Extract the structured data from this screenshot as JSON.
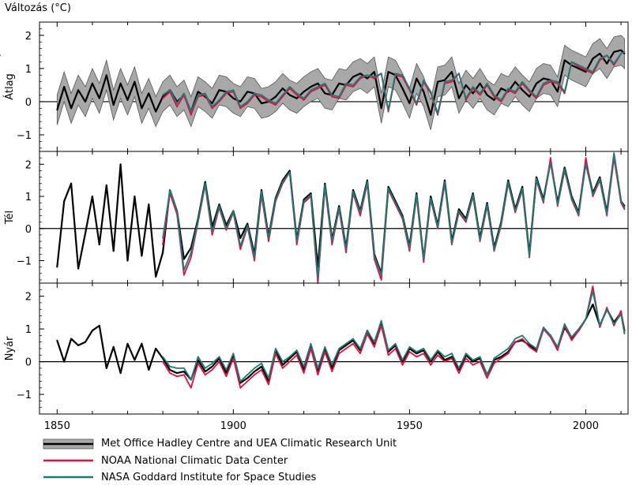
{
  "chart_data": {
    "type": "line",
    "title": "",
    "ylabel": "Változás (°C)",
    "xlim": [
      1845,
      2012
    ],
    "xticks": [
      1850,
      1900,
      1950,
      2000
    ],
    "colors": {
      "hadley": "#000000",
      "hadley_band": "#a8a8a8",
      "noaa": "#e0103e",
      "nasa": "#1d7a79"
    },
    "legend": [
      {
        "key": "hadley",
        "label": "Met Office Hadley Centre and UEA Climatic Research Unit"
      },
      {
        "key": "noaa",
        "label": "NOAA National Climatic Data Center"
      },
      {
        "key": "nasa",
        "label": "NASA Goddard Institute for Space Studies"
      }
    ],
    "panels": [
      {
        "name": "Átlag",
        "ylim": [
          -1.5,
          2.4
        ],
        "yticks": [
          -1,
          0,
          1,
          2
        ],
        "x": [
          1850,
          1852,
          1854,
          1856,
          1858,
          1860,
          1862,
          1864,
          1866,
          1868,
          1870,
          1872,
          1874,
          1876,
          1878,
          1880,
          1882,
          1884,
          1886,
          1888,
          1890,
          1892,
          1894,
          1896,
          1898,
          1900,
          1902,
          1904,
          1906,
          1908,
          1910,
          1912,
          1914,
          1916,
          1918,
          1920,
          1922,
          1924,
          1926,
          1928,
          1930,
          1932,
          1934,
          1936,
          1938,
          1940,
          1942,
          1944,
          1946,
          1948,
          1950,
          1952,
          1954,
          1956,
          1958,
          1960,
          1962,
          1964,
          1966,
          1968,
          1970,
          1972,
          1974,
          1976,
          1978,
          1980,
          1982,
          1984,
          1986,
          1988,
          1990,
          1992,
          1994,
          1996,
          1998,
          2000,
          2002,
          2004,
          2006,
          2008,
          2010,
          2011
        ],
        "series": [
          {
            "key": "hadley",
            "uncertainty": 0.45,
            "start": 1850,
            "values": [
              -0.25,
              0.45,
              -0.2,
              0.35,
              0.0,
              0.55,
              0.1,
              0.8,
              -0.1,
              0.55,
              0.05,
              0.6,
              -0.2,
              0.25,
              -0.3,
              0.15,
              0.35,
              0.0,
              0.2,
              -0.3,
              0.3,
              0.15,
              -0.05,
              0.35,
              0.3,
              0.1,
              0.0,
              0.3,
              0.25,
              -0.05,
              0.0,
              0.15,
              0.4,
              0.2,
              0.1,
              0.3,
              0.45,
              0.55,
              0.25,
              0.2,
              0.55,
              0.5,
              0.75,
              0.85,
              0.7,
              0.9,
              -0.2,
              0.9,
              0.8,
              0.4,
              -0.05,
              0.7,
              0.3,
              -0.4,
              0.6,
              0.65,
              0.9,
              0.1,
              0.5,
              0.25,
              0.55,
              0.2,
              0.05,
              0.4,
              0.3,
              0.6,
              0.35,
              0.15,
              0.55,
              0.7,
              0.65,
              0.3,
              1.25,
              1.1,
              1.0,
              0.9,
              1.3,
              1.45,
              1.15,
              1.5,
              1.55,
              1.45
            ]
          },
          {
            "key": "noaa",
            "start": 1880,
            "values": [
              0.1,
              0.3,
              -0.15,
              0.2,
              -0.4,
              0.15,
              0.2,
              -0.2,
              0.0,
              0.25,
              0.3,
              -0.2,
              -0.05,
              0.2,
              0.15,
              0.0,
              -0.1,
              0.15,
              0.4,
              0.2,
              0.05,
              0.3,
              0.4,
              0.5,
              0.15,
              0.1,
              0.5,
              0.45,
              0.7,
              0.8,
              0.7,
              0.85,
              -0.3,
              0.8,
              0.75,
              0.35,
              -0.1,
              0.6,
              0.25,
              -0.4,
              0.55,
              0.6,
              0.85,
              0.05,
              0.4,
              0.2,
              0.5,
              0.15,
              0.0,
              0.35,
              0.25,
              0.55,
              0.3,
              0.1,
              0.5,
              0.6,
              0.55,
              0.25,
              1.2,
              1.05,
              0.95,
              0.85,
              1.25,
              1.4,
              1.1,
              1.45,
              1.5,
              1.4
            ]
          },
          {
            "key": "nasa",
            "start": 1880,
            "values": [
              0.2,
              0.35,
              -0.05,
              0.25,
              -0.3,
              0.2,
              0.25,
              -0.15,
              0.05,
              0.3,
              0.35,
              -0.15,
              0.0,
              0.25,
              0.2,
              0.05,
              -0.05,
              0.2,
              0.45,
              0.25,
              0.1,
              0.35,
              0.45,
              0.55,
              0.2,
              0.15,
              0.55,
              0.5,
              0.75,
              0.8,
              0.75,
              0.85,
              -0.25,
              0.85,
              0.8,
              0.4,
              -0.05,
              0.65,
              0.3,
              -0.35,
              0.6,
              0.65,
              0.85,
              0.1,
              0.45,
              0.25,
              0.55,
              0.2,
              0.05,
              0.4,
              0.3,
              0.6,
              0.35,
              0.15,
              0.55,
              0.65,
              0.6,
              0.3,
              1.2,
              1.1,
              1.0,
              0.9,
              1.3,
              1.4,
              1.15,
              1.45,
              1.5,
              1.4
            ]
          }
        ]
      },
      {
        "name": "Tél",
        "ylim": [
          -1.7,
          2.4
        ],
        "yticks": [
          -1,
          0,
          1,
          2
        ],
        "x": [
          1850,
          1852,
          1854,
          1856,
          1858,
          1860,
          1862,
          1864,
          1866,
          1868,
          1870,
          1872,
          1874,
          1876,
          1878,
          1880,
          1882,
          1884,
          1886,
          1888,
          1890,
          1892,
          1894,
          1896,
          1898,
          1900,
          1902,
          1904,
          1906,
          1908,
          1910,
          1912,
          1914,
          1916,
          1918,
          1920,
          1922,
          1924,
          1926,
          1928,
          1930,
          1932,
          1934,
          1936,
          1938,
          1940,
          1942,
          1944,
          1946,
          1948,
          1950,
          1952,
          1954,
          1956,
          1958,
          1960,
          1962,
          1964,
          1966,
          1968,
          1970,
          1972,
          1974,
          1976,
          1978,
          1980,
          1982,
          1984,
          1986,
          1988,
          1990,
          1992,
          1994,
          1996,
          1998,
          2000,
          2002,
          2004,
          2006,
          2008,
          2010,
          2011
        ],
        "series": [
          {
            "key": "hadley",
            "start": 1850,
            "values": [
              -1.2,
              0.85,
              1.4,
              -1.25,
              -0.15,
              1.0,
              -0.5,
              1.35,
              -0.7,
              2.0,
              -1.0,
              1.0,
              -0.85,
              0.75,
              -1.5,
              -0.75,
              1.2,
              0.55,
              -0.95,
              -0.6,
              0.3,
              1.45,
              0.05,
              0.75,
              0.1,
              0.55,
              -0.3,
              0.15,
              -0.8,
              1.2,
              -0.25,
              0.95,
              1.5,
              1.8,
              -0.35,
              0.9,
              1.1,
              -1.2,
              1.4,
              -0.35,
              0.7,
              -0.6,
              1.2,
              0.55,
              1.5,
              -0.8,
              -1.4,
              1.3,
              0.85,
              0.4,
              -0.55,
              1.1,
              -0.95,
              1.0,
              0.1,
              1.5,
              -0.4,
              0.6,
              0.3,
              1.1,
              -0.3,
              0.8,
              -0.6,
              0.2,
              1.5,
              0.6,
              1.3,
              -0.8,
              1.6,
              0.9,
              2.1,
              0.8,
              1.9,
              1.0,
              0.5,
              2.1,
              1.1,
              1.6,
              0.5,
              2.3,
              0.85,
              0.7
            ]
          },
          {
            "key": "noaa",
            "start": 1880,
            "values": [
              -0.5,
              1.1,
              0.45,
              -1.45,
              -0.9,
              0.2,
              1.35,
              -0.2,
              0.65,
              -0.05,
              0.5,
              -0.65,
              0.05,
              -1.0,
              1.05,
              -0.4,
              0.85,
              1.4,
              1.75,
              -0.5,
              0.8,
              1.0,
              -1.7,
              1.3,
              -0.5,
              0.6,
              -0.75,
              1.1,
              0.4,
              1.4,
              -0.95,
              -1.6,
              1.2,
              0.75,
              0.3,
              -0.7,
              1.0,
              -1.05,
              0.9,
              0.0,
              1.4,
              -0.5,
              0.5,
              0.2,
              1.0,
              -0.4,
              0.7,
              -0.7,
              0.1,
              1.4,
              0.5,
              1.2,
              -0.9,
              1.5,
              0.8,
              2.2,
              0.7,
              1.8,
              0.9,
              0.4,
              2.2,
              1.0,
              1.5,
              0.4,
              2.2,
              0.8,
              0.6
            ]
          },
          {
            "key": "nasa",
            "start": 1880,
            "values": [
              -0.3,
              1.2,
              0.55,
              -1.3,
              -0.75,
              0.25,
              1.4,
              -0.1,
              0.7,
              0.0,
              0.55,
              -0.55,
              0.1,
              -0.9,
              1.15,
              -0.3,
              0.9,
              1.45,
              1.75,
              -0.4,
              0.85,
              1.05,
              -1.55,
              1.35,
              -0.4,
              0.65,
              -0.65,
              1.15,
              0.5,
              1.45,
              -0.85,
              -1.45,
              1.25,
              0.8,
              0.35,
              -0.6,
              1.05,
              -0.95,
              0.95,
              0.05,
              1.45,
              -0.45,
              0.55,
              0.25,
              1.05,
              -0.35,
              0.75,
              -0.65,
              0.15,
              1.45,
              0.55,
              1.25,
              -0.85,
              1.55,
              0.85,
              2.05,
              0.75,
              1.85,
              0.95,
              0.45,
              2.0,
              1.05,
              1.55,
              0.45,
              2.35,
              0.85,
              0.65
            ]
          }
        ]
      },
      {
        "name": "Nyár",
        "ylim": [
          -1.6,
          2.4
        ],
        "yticks": [
          -1,
          0,
          1,
          2
        ],
        "x": [
          1850,
          1852,
          1854,
          1856,
          1858,
          1860,
          1862,
          1864,
          1866,
          1868,
          1870,
          1872,
          1874,
          1876,
          1878,
          1880,
          1882,
          1884,
          1886,
          1888,
          1890,
          1892,
          1894,
          1896,
          1898,
          1900,
          1902,
          1904,
          1906,
          1908,
          1910,
          1912,
          1914,
          1916,
          1918,
          1920,
          1922,
          1924,
          1926,
          1928,
          1930,
          1932,
          1934,
          1936,
          1938,
          1940,
          1942,
          1944,
          1946,
          1948,
          1950,
          1952,
          1954,
          1956,
          1958,
          1960,
          1962,
          1964,
          1966,
          1968,
          1970,
          1972,
          1974,
          1976,
          1978,
          1980,
          1982,
          1984,
          1986,
          1988,
          1990,
          1992,
          1994,
          1996,
          1998,
          2000,
          2002,
          2004,
          2006,
          2008,
          2010,
          2011
        ],
        "series": [
          {
            "key": "hadley",
            "start": 1850,
            "values": [
              0.65,
              0.0,
              0.7,
              0.5,
              0.6,
              0.95,
              1.1,
              -0.2,
              0.45,
              -0.35,
              0.55,
              0.05,
              0.55,
              -0.25,
              0.4,
              0.1,
              -0.25,
              -0.35,
              -0.3,
              -0.55,
              0.05,
              -0.3,
              -0.15,
              0.1,
              -0.35,
              0.2,
              -0.65,
              -0.5,
              -0.3,
              -0.15,
              -0.6,
              0.35,
              -0.1,
              0.1,
              0.3,
              -0.25,
              0.5,
              -0.3,
              0.4,
              -0.2,
              0.35,
              0.5,
              0.65,
              0.35,
              0.95,
              0.55,
              1.2,
              0.3,
              0.5,
              0.0,
              0.4,
              0.25,
              0.35,
              0.0,
              0.3,
              0.05,
              0.15,
              -0.25,
              0.2,
              0.0,
              0.1,
              -0.4,
              0.05,
              0.15,
              0.3,
              0.6,
              0.65,
              0.5,
              0.35,
              1.0,
              0.8,
              0.4,
              1.05,
              0.7,
              0.95,
              1.3,
              1.75,
              1.1,
              1.6,
              1.2,
              1.5,
              0.95
            ]
          },
          {
            "key": "noaa",
            "start": 1880,
            "values": [
              0.0,
              -0.35,
              -0.45,
              -0.4,
              -0.8,
              -0.05,
              -0.4,
              -0.25,
              0.0,
              -0.45,
              0.1,
              -0.8,
              -0.6,
              -0.4,
              -0.25,
              -0.7,
              0.25,
              -0.2,
              0.0,
              0.2,
              -0.35,
              0.4,
              -0.4,
              0.3,
              -0.3,
              0.25,
              0.4,
              0.55,
              0.25,
              0.85,
              0.45,
              1.1,
              0.2,
              0.4,
              -0.1,
              0.3,
              0.15,
              0.25,
              -0.1,
              0.2,
              0.0,
              0.1,
              -0.35,
              0.1,
              -0.1,
              0.0,
              -0.5,
              -0.05,
              0.1,
              0.25,
              0.6,
              0.7,
              0.45,
              0.3,
              1.0,
              0.75,
              0.35,
              1.1,
              0.65,
              0.95,
              1.3,
              2.3,
              1.05,
              1.65,
              1.1,
              1.55,
              0.9
            ]
          },
          {
            "key": "nasa",
            "start": 1880,
            "values": [
              0.15,
              -0.15,
              -0.2,
              -0.2,
              -0.55,
              0.15,
              -0.2,
              -0.05,
              0.15,
              -0.25,
              0.25,
              -0.6,
              -0.4,
              -0.2,
              -0.05,
              -0.5,
              0.4,
              0.0,
              0.15,
              0.35,
              -0.15,
              0.55,
              -0.2,
              0.45,
              -0.1,
              0.4,
              0.55,
              0.7,
              0.4,
              0.95,
              0.6,
              1.25,
              0.35,
              0.55,
              0.05,
              0.45,
              0.3,
              0.4,
              0.05,
              0.35,
              0.15,
              0.25,
              -0.2,
              0.25,
              0.05,
              0.15,
              -0.4,
              0.1,
              0.25,
              0.4,
              0.7,
              0.8,
              0.55,
              0.4,
              1.05,
              0.8,
              0.45,
              1.15,
              0.75,
              1.0,
              1.3,
              2.15,
              1.1,
              1.6,
              1.15,
              1.45,
              0.85
            ]
          }
        ]
      }
    ]
  }
}
